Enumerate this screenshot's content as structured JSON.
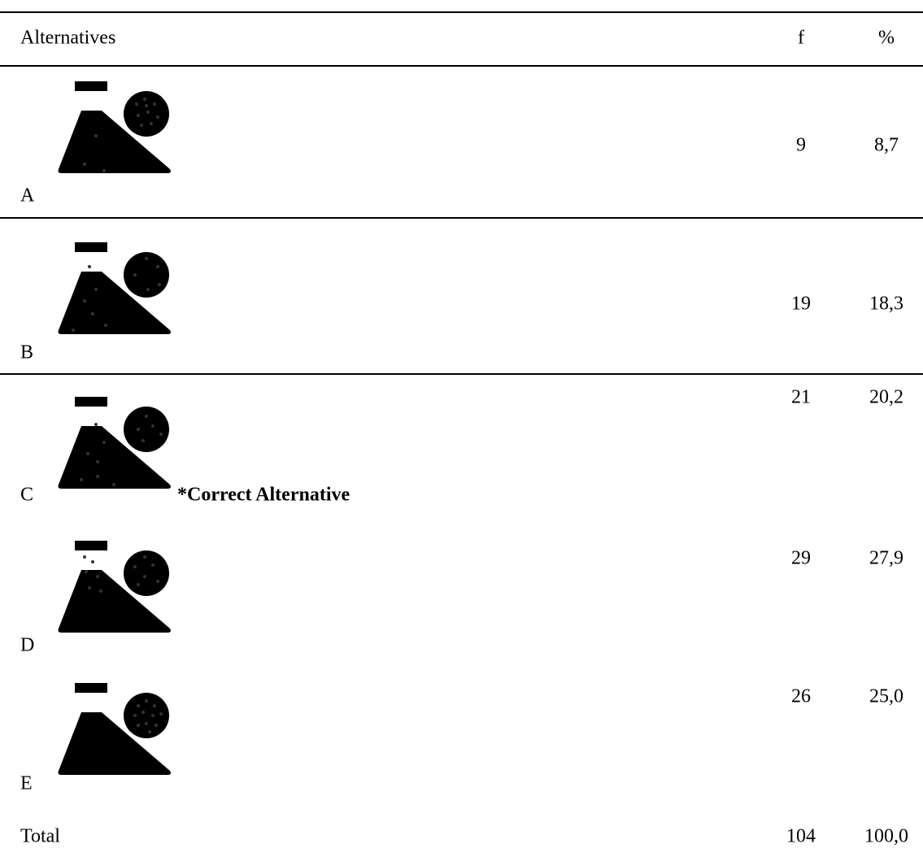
{
  "table": {
    "header": [
      "Alternatives",
      "f",
      "%"
    ],
    "rows": [
      {
        "label": "A",
        "f": "9",
        "percent": "8,7"
      },
      {
        "label": "B",
        "f": "19",
        "percent": "18,3"
      },
      {
        "label": "C",
        "f": "21",
        "percent": "20,2"
      },
      {
        "label": "D",
        "f": "29",
        "percent": "27,9"
      },
      {
        "label": "E",
        "f": "26",
        "percent": "25,0"
      }
    ],
    "note": "*Correct Alternative",
    "total": {
      "label": "Total",
      "f": "104",
      "percent": "100,0"
    }
  }
}
